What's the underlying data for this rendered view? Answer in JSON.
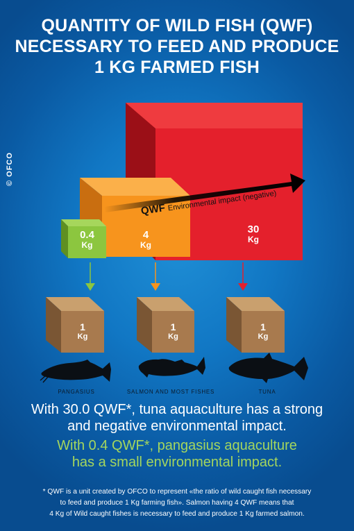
{
  "title": {
    "line1": "QUANTITY OF WILD FISH (QWF)",
    "line2": "NECESSARY TO FEED AND PRODUCE",
    "line3": "1 KG FARMED FISH"
  },
  "credit": "© OFCO",
  "colors": {
    "background": "#1177c4",
    "green": "#8cc63f",
    "orange": "#f7941d",
    "red": "#e4202c",
    "box": "#a87a4e",
    "green_text": "#a4d65e"
  },
  "cubes": {
    "pangasius": {
      "value": "0.4",
      "unit": "Kg",
      "qwf": 0.4
    },
    "salmon": {
      "value": "4",
      "unit": "Kg",
      "qwf": 4
    },
    "tuna": {
      "value": "30",
      "unit": "Kg",
      "qwf": 30
    }
  },
  "impact_arrow": {
    "qwf": "QWF",
    "text": "Environmental impact (negative)"
  },
  "boxes": [
    {
      "value": "1",
      "unit": "Kg"
    },
    {
      "value": "1",
      "unit": "Kg"
    },
    {
      "value": "1",
      "unit": "Kg"
    }
  ],
  "fish": {
    "pangasius": "PANGASIUS",
    "salmon": "SALMON AND MOST FISHES",
    "tuna": "TUNA"
  },
  "statements": {
    "tuna_line1": "With 30.0 QWF*, tuna aquaculture has a strong",
    "tuna_line2": "and negative environmental impact.",
    "pangasius_line1": "With 0.4 QWF*, pangasius aquaculture",
    "pangasius_line2": "has a small environmental impact."
  },
  "footnote": {
    "line1": "* QWF is a unit created by OFCO to represent «the ratio of wild caught fish necessary",
    "line2": "to feed and produce 1 Kg farming fish». Salmon having 4 QWF means that",
    "line3": "4 Kg of Wild caught fishes is necessary to feed and produce 1 Kg farmed salmon."
  }
}
